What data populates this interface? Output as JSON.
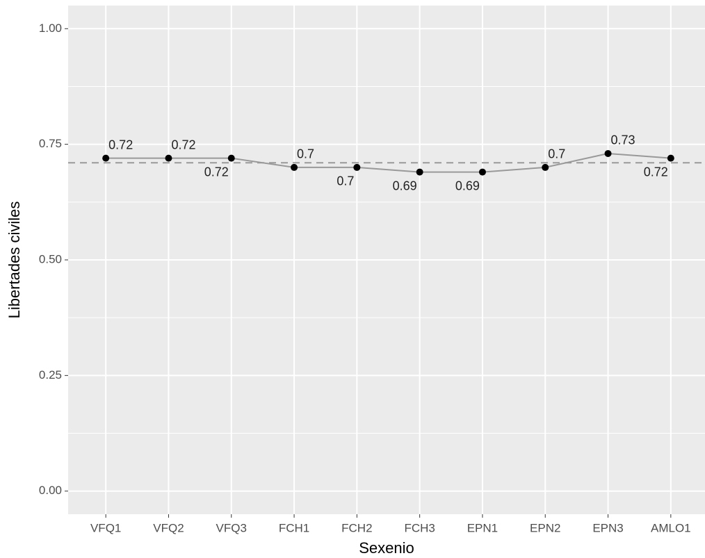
{
  "chart_data": {
    "type": "line",
    "categories": [
      "VFQ1",
      "VFQ2",
      "VFQ3",
      "FCH1",
      "FCH2",
      "FCH3",
      "EPN1",
      "EPN2",
      "EPN3",
      "AMLO1"
    ],
    "values": [
      0.72,
      0.72,
      0.72,
      0.7,
      0.7,
      0.69,
      0.69,
      0.7,
      0.73,
      0.72
    ],
    "color": "#999999",
    "point_color": "#000000",
    "reference_line": 0.71,
    "x_label": "Sexenio",
    "y_label": "Libertades civiles",
    "ylim": [
      -0.05,
      1.05
    ],
    "yticks": [
      {
        "value": 0,
        "label": "0.00"
      },
      {
        "value": 0.25,
        "label": "0.25"
      },
      {
        "value": 0.5,
        "label": "0.50"
      },
      {
        "value": 0.75,
        "label": "0.75"
      },
      {
        "value": 1,
        "label": "1.00"
      }
    ],
    "grid": true
  }
}
